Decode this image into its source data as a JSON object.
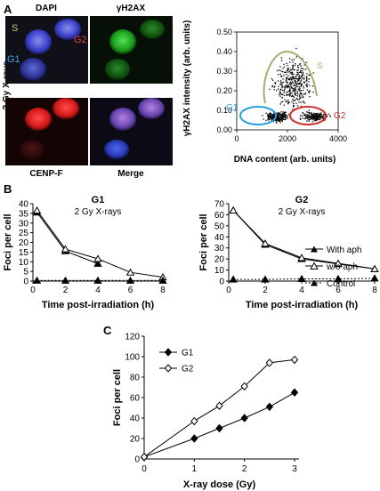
{
  "panel_a": {
    "letter": "A",
    "micro": {
      "label_dapi": "DAPI",
      "label_gh2ax": "γH2AX",
      "label_cenpf": "CENP-F",
      "label_merge": "Merge",
      "side_label": "2 Gy X-rays",
      "cell_s": "S",
      "cell_g2": "G2",
      "cell_g1": "G1",
      "colors": {
        "dapi": "#3a3ad0",
        "gh2ax": "#1fa81f",
        "cenpf": "#d42020",
        "merge": "#6b4fa8"
      }
    },
    "scatter": {
      "ylabel": "γH2AX intensity (arb. units)",
      "xlabel": "DNA content (arb. units)",
      "xticks": [
        "0",
        "2000",
        "4000"
      ],
      "yticks": [
        "0.00",
        "0.10",
        "0.20",
        "0.30",
        "0.40",
        "0.50"
      ],
      "gate_g1": "G1",
      "gate_g2": "G2",
      "gate_s": "S",
      "gate_colors": {
        "g1": "#2aa0d8",
        "g2": "#d03030",
        "s": "#a8ac6e"
      }
    }
  },
  "panel_b": {
    "letter": "B",
    "ylabel": "Foci per cell",
    "xlabel": "Time post-irradiation (h)",
    "legend": {
      "with_aph": "With aph",
      "wo_aph": "w/o aph",
      "control": "Control"
    }
  },
  "panel_c": {
    "letter": "C"
  },
  "chart_data": [
    {
      "type": "scatter",
      "xlabel": "DNA content (arb. units)",
      "ylabel": "γH2AX intensity (arb. units)",
      "xlim": [
        0,
        4000
      ],
      "ylim": [
        0,
        0.5
      ],
      "populations": [
        {
          "name": "G1",
          "x_center": 1600,
          "x_spread": 300,
          "y_center": 0.07,
          "y_spread": 0.015
        },
        {
          "name": "G2",
          "x_center": 3100,
          "x_spread": 350,
          "y_center": 0.07,
          "y_spread": 0.015
        },
        {
          "name": "S",
          "x_center": 2200,
          "x_spread": 500,
          "y_center": 0.24,
          "y_spread": 0.08
        }
      ]
    },
    {
      "type": "line",
      "title": "G1",
      "subtitle": "2 Gy X-rays",
      "xlabel": "Time post-irradiation (h)",
      "ylabel": "Foci per cell",
      "xlim": [
        0,
        8
      ],
      "ylim": [
        0,
        40
      ],
      "xticks": [
        0,
        2,
        4,
        6,
        8
      ],
      "yticks": [
        0,
        5,
        10,
        15,
        20,
        25,
        30,
        35,
        40
      ],
      "series": [
        {
          "name": "With aph",
          "x": [
            0.25,
            2,
            4
          ],
          "values": [
            35.5,
            15.5,
            9
          ]
        },
        {
          "name": "w/o aph",
          "x": [
            0.25,
            2,
            4,
            6,
            8
          ],
          "values": [
            36.5,
            16.5,
            11.5,
            4.5,
            2
          ]
        },
        {
          "name": "Control",
          "x": [
            0.25,
            2,
            4,
            6,
            8
          ],
          "values": [
            0.3,
            0.3,
            0.3,
            0.3,
            0.3
          ]
        }
      ]
    },
    {
      "type": "line",
      "title": "G2",
      "subtitle": "2 Gy X-rays",
      "xlabel": "Time post-irradiation (h)",
      "ylabel": "Foci per cell",
      "xlim": [
        0,
        8
      ],
      "ylim": [
        0,
        70
      ],
      "xticks": [
        0,
        2,
        4,
        6,
        8
      ],
      "yticks": [
        0,
        10,
        20,
        30,
        40,
        50,
        60,
        70
      ],
      "series": [
        {
          "name": "With aph",
          "x": [
            0.25,
            2,
            4,
            6,
            8
          ],
          "values": [
            64,
            33,
            20,
            15.5,
            11
          ]
        },
        {
          "name": "w/o aph",
          "x": [
            0.25,
            2,
            4,
            6,
            8
          ],
          "values": [
            64,
            34,
            21,
            16,
            11
          ]
        },
        {
          "name": "Control",
          "x": [
            0.25,
            2,
            4,
            6,
            8
          ],
          "values": [
            1.5,
            1.5,
            2,
            2,
            2.5
          ]
        }
      ]
    },
    {
      "type": "line",
      "xlabel": "X-ray dose (Gy)",
      "ylabel": "Foci per cell",
      "xlim": [
        0,
        3
      ],
      "ylim": [
        0,
        120
      ],
      "xticks": [
        0,
        1,
        2,
        3
      ],
      "yticks": [
        0,
        20,
        40,
        60,
        80,
        100,
        120
      ],
      "series": [
        {
          "name": "G1",
          "x": [
            0,
            1,
            1.5,
            2,
            2.5,
            3
          ],
          "values": [
            2,
            20,
            30,
            40,
            51,
            65
          ]
        },
        {
          "name": "G2",
          "x": [
            0,
            1,
            1.5,
            2,
            2.5,
            3
          ],
          "values": [
            2,
            37,
            52,
            71,
            94,
            97
          ]
        }
      ]
    }
  ]
}
